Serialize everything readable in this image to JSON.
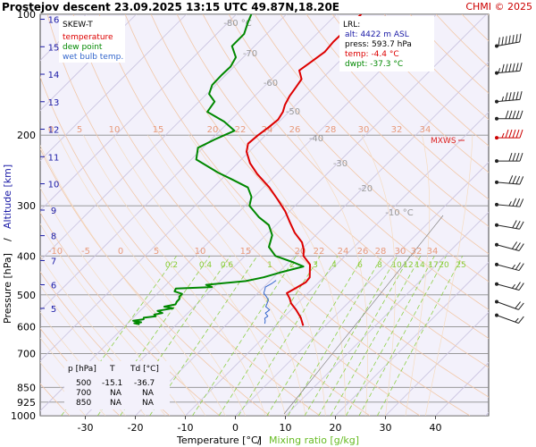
{
  "header": {
    "title": "Prostejov   descent   23.09.2025 13:15 UTC   49.87N,18.20E",
    "credit": "CHMI © 2025"
  },
  "legend": {
    "title": "SKEW-T",
    "items": [
      {
        "label": "temperature",
        "color": "#dd0000"
      },
      {
        "label": "dew point",
        "color": "#008800"
      },
      {
        "label": "wet bulb temp.",
        "color": "#3366cc"
      }
    ]
  },
  "info_box": {
    "title": "LRL:",
    "lines": [
      {
        "text": "alt: 4422 m ASL",
        "color": "#1a1aa6"
      },
      {
        "text": "press: 593.7 hPa",
        "color": "#000000"
      },
      {
        "text": "temp: -4.4 °C",
        "color": "#dd0000"
      },
      {
        "text": "dwpt: -37.3 °C",
        "color": "#008800"
      }
    ]
  },
  "mxws_label": "MXWS",
  "table": {
    "headers": [
      "p [hPa]",
      "T",
      "Td [°C]"
    ],
    "rows": [
      [
        "500",
        "-15.1",
        "-36.7"
      ],
      [
        "700",
        "NA",
        "NA"
      ],
      [
        "850",
        "NA",
        "NA"
      ]
    ]
  },
  "axes": {
    "xlabel_temp": "Temperature [°C]",
    "xlabel_sep": "/",
    "xlabel_mix": "Mixing ratio [g/kg]",
    "ylabel_pressure": "Pressure [hPa]",
    "ylabel_sep": "/",
    "ylabel_alt": "Altitude [km]",
    "x_ticks": [
      -30,
      -20,
      -10,
      0,
      10,
      20,
      30,
      40
    ],
    "p_ticks": [
      100,
      200,
      300,
      400,
      500,
      600,
      700,
      850,
      925,
      1000
    ],
    "alt_ticks": [
      5,
      6,
      7,
      8,
      9,
      10,
      11,
      12,
      13,
      14,
      15,
      16
    ],
    "xlim": [
      -35,
      47
    ],
    "plim": [
      100,
      1000
    ]
  },
  "annotations": {
    "dry_adiabat_labels": [
      "-80 °C",
      "-70",
      "-60",
      "-50",
      "-40",
      "-30",
      "-20",
      "-10 °C"
    ],
    "isotherm_row_200": [
      "0",
      "5",
      "10",
      "15",
      "20",
      "22",
      "24",
      "26",
      "28",
      "30",
      "32",
      "34"
    ],
    "isotherm_row_400": [
      "-10",
      "-5",
      "0",
      "5",
      "10",
      "15",
      "20",
      "22",
      "24",
      "26",
      "28",
      "30",
      "32",
      "34"
    ],
    "mixing_ratio_labels": [
      "0.2",
      "0.4",
      "0.6",
      "1",
      "2",
      "3",
      "4",
      "6",
      "8",
      "10",
      "12",
      "14",
      "17",
      "20",
      "25"
    ]
  },
  "chart_data": {
    "type": "line",
    "title": "SKEW-T",
    "xlabel": "Temperature [°C]",
    "ylabel": "Pressure [hPa]",
    "xlim": [
      -35,
      47
    ],
    "plim": [
      100,
      1000
    ],
    "grid": true,
    "series": [
      {
        "name": "temperature",
        "color": "#dd0000",
        "points": [
          [
            597,
            -4.4
          ],
          [
            570,
            -6.5
          ],
          [
            545,
            -9.0
          ],
          [
            525,
            -11.3
          ],
          [
            510,
            -12.6
          ],
          [
            495,
            -14.2
          ],
          [
            482,
            -13.5
          ],
          [
            465,
            -12.6
          ],
          [
            452,
            -12.8
          ],
          [
            420,
            -15.3
          ],
          [
            400,
            -18.3
          ],
          [
            385,
            -19.6
          ],
          [
            370,
            -21.3
          ],
          [
            350,
            -24.7
          ],
          [
            330,
            -27.7
          ],
          [
            310,
            -30.8
          ],
          [
            290,
            -34.6
          ],
          [
            270,
            -38.8
          ],
          [
            250,
            -43.9
          ],
          [
            235,
            -47.5
          ],
          [
            220,
            -50.5
          ],
          [
            210,
            -51.8
          ],
          [
            200,
            -51.5
          ],
          [
            192,
            -51.0
          ],
          [
            183,
            -50.6
          ],
          [
            175,
            -51.2
          ],
          [
            168,
            -52.2
          ],
          [
            160,
            -53.0
          ],
          [
            152,
            -53.5
          ],
          [
            145,
            -54.0
          ],
          [
            138,
            -56.2
          ],
          [
            131,
            -55.5
          ],
          [
            124,
            -54.8
          ],
          [
            117,
            -55.1
          ],
          [
            111,
            -55.0
          ],
          [
            106,
            -55.6
          ],
          [
            103,
            -55.2
          ],
          [
            100,
            -55.0
          ]
        ]
      },
      {
        "name": "dew point",
        "color": "#008800",
        "points": [
          [
            592,
            -37.4
          ],
          [
            588,
            -38.7
          ],
          [
            585,
            -37.5
          ],
          [
            580,
            -39.4
          ],
          [
            575,
            -37.6
          ],
          [
            570,
            -37.9
          ],
          [
            565,
            -35.8
          ],
          [
            560,
            -36.4
          ],
          [
            555,
            -35.1
          ],
          [
            548,
            -36.5
          ],
          [
            540,
            -33.9
          ],
          [
            535,
            -36.0
          ],
          [
            528,
            -34.2
          ],
          [
            520,
            -34.5
          ],
          [
            512,
            -34.5
          ],
          [
            505,
            -35.0
          ],
          [
            497,
            -35.0
          ],
          [
            490,
            -37.0
          ],
          [
            482,
            -37.3
          ],
          [
            478,
            -30.4
          ],
          [
            472,
            -32.0
          ],
          [
            462,
            -24.8
          ],
          [
            452,
            -22.0
          ],
          [
            440,
            -19.7
          ],
          [
            425,
            -16.2
          ],
          [
            415,
            -19.0
          ],
          [
            400,
            -23.9
          ],
          [
            380,
            -27.0
          ],
          [
            355,
            -28.7
          ],
          [
            335,
            -31.4
          ],
          [
            320,
            -35.0
          ],
          [
            300,
            -39.1
          ],
          [
            285,
            -40.5
          ],
          [
            270,
            -43.1
          ],
          [
            258,
            -47.8
          ],
          [
            248,
            -52.0
          ],
          [
            230,
            -59.0
          ],
          [
            215,
            -61.0
          ],
          [
            205,
            -59.3
          ],
          [
            195,
            -57.1
          ],
          [
            185,
            -61.0
          ],
          [
            175,
            -66.3
          ],
          [
            165,
            -66.9
          ],
          [
            158,
            -69.5
          ],
          [
            150,
            -70.7
          ],
          [
            142,
            -70.8
          ],
          [
            135,
            -70.7
          ],
          [
            128,
            -71.5
          ],
          [
            120,
            -74.5
          ],
          [
            112,
            -74.5
          ],
          [
            105,
            -76.0
          ],
          [
            100,
            -77.0
          ]
        ]
      },
      {
        "name": "wet bulb temp.",
        "color": "#3366cc",
        "points": [
          [
            590,
            -12.5
          ],
          [
            580,
            -13.0
          ],
          [
            572,
            -13.6
          ],
          [
            565,
            -13.4
          ],
          [
            555,
            -14.5
          ],
          [
            545,
            -14.3
          ],
          [
            535,
            -15.7
          ],
          [
            525,
            -16.1
          ],
          [
            515,
            -16.5
          ],
          [
            505,
            -17.6
          ],
          [
            495,
            -18.8
          ],
          [
            485,
            -19.3
          ],
          [
            478,
            -19.7
          ],
          [
            468,
            -19.1
          ],
          [
            460,
            -18.9
          ]
        ]
      }
    ]
  },
  "wind_barbs": [
    {
      "p": 120,
      "dir": 260,
      "kt": 70
    },
    {
      "p": 140,
      "dir": 265,
      "kt": 65
    },
    {
      "p": 165,
      "dir": 265,
      "kt": 55
    },
    {
      "p": 182,
      "dir": 270,
      "kt": 50
    },
    {
      "p": 203,
      "dir": 270,
      "kt": 55,
      "highlight": true
    },
    {
      "p": 232,
      "dir": 270,
      "kt": 40
    },
    {
      "p": 262,
      "dir": 275,
      "kt": 40
    },
    {
      "p": 298,
      "dir": 275,
      "kt": 35
    },
    {
      "p": 335,
      "dir": 280,
      "kt": 30
    },
    {
      "p": 375,
      "dir": 285,
      "kt": 30
    },
    {
      "p": 420,
      "dir": 285,
      "kt": 25
    },
    {
      "p": 470,
      "dir": 285,
      "kt": 25
    },
    {
      "p": 520,
      "dir": 290,
      "kt": 20
    },
    {
      "p": 562,
      "dir": 290,
      "kt": 15
    }
  ]
}
